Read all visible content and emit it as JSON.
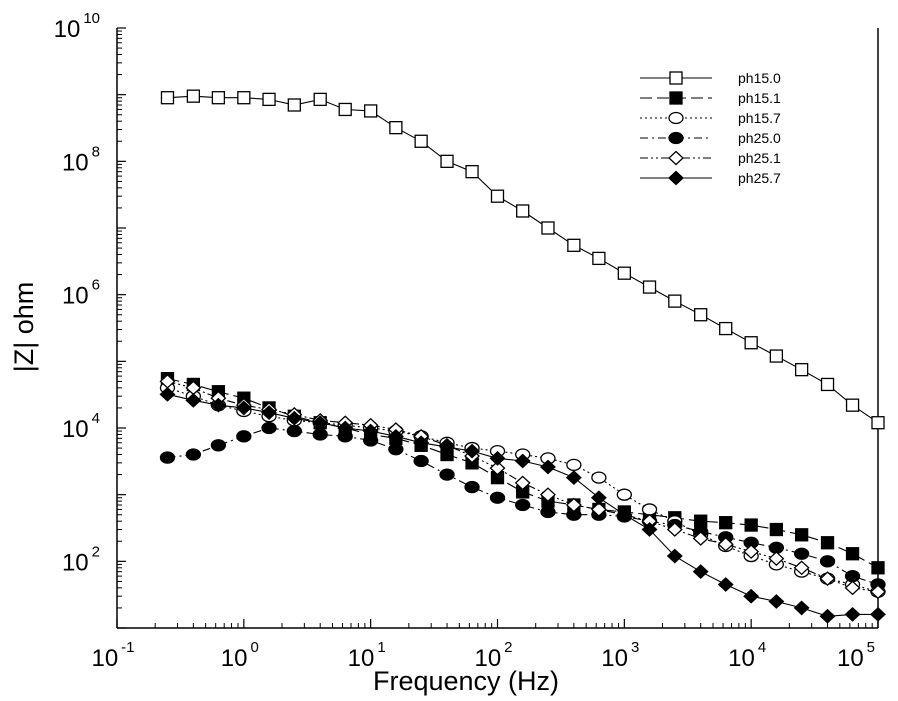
{
  "chart_data": {
    "type": "line",
    "title": "",
    "xlabel": "Frequency (Hz)",
    "ylabel": "|Z| ohm",
    "x_scale": "log",
    "y_scale": "log",
    "xlim": [
      0.1,
      100000
    ],
    "ylim": [
      10,
      10000000000
    ],
    "x_tick_labels": [
      {
        "base": "10",
        "exp": "-1",
        "value": 0.1
      },
      {
        "base": "10",
        "exp": "0",
        "value": 1
      },
      {
        "base": "10",
        "exp": "1",
        "value": 10
      },
      {
        "base": "10",
        "exp": "2",
        "value": 100
      },
      {
        "base": "10",
        "exp": "3",
        "value": 1000
      },
      {
        "base": "10",
        "exp": "4",
        "value": 10000
      },
      {
        "base": "10",
        "exp": "5",
        "value": 100000
      }
    ],
    "y_tick_labels": [
      {
        "base": "10",
        "exp": "2",
        "value": 100
      },
      {
        "base": "10",
        "exp": "4",
        "value": 10000
      },
      {
        "base": "10",
        "exp": "6",
        "value": 1000000
      },
      {
        "base": "10",
        "exp": "8",
        "value": 100000000
      },
      {
        "base": "10",
        "exp": "10",
        "value": 10000000000
      }
    ],
    "legend_position": "top-right",
    "x": [
      0.25,
      0.4,
      0.63,
      1,
      1.58,
      2.5,
      4,
      6.3,
      10,
      15.8,
      25,
      40,
      63,
      100,
      158,
      250,
      400,
      630,
      1000,
      1580,
      2500,
      4000,
      6300,
      10000,
      15800,
      25000,
      40000,
      63000,
      100000
    ],
    "series": [
      {
        "name": "ph15.0",
        "marker": "square-open",
        "dash": "solid",
        "values": [
          900000000,
          950000000,
          900000000,
          900000000,
          850000000,
          700000000,
          850000000,
          600000000,
          570000000,
          320000000,
          200000000,
          100000000,
          70000000,
          30000000,
          18000000,
          10000000,
          5500000,
          3500000,
          2100000,
          1300000,
          800000,
          500000,
          310000,
          190000,
          120000,
          75000,
          45000,
          22000,
          12000
        ]
      },
      {
        "name": "ph15.1",
        "marker": "square-filled",
        "dash": "longdash",
        "values": [
          55000,
          45000,
          35000,
          28000,
          20000,
          15000,
          12000,
          10000,
          8000,
          7000,
          5500,
          4000,
          3000,
          1800,
          1100,
          800,
          700,
          600,
          550,
          500,
          450,
          400,
          380,
          350,
          300,
          250,
          190,
          130,
          80
        ]
      },
      {
        "name": "ph15.7",
        "marker": "circle-open",
        "dash": "dotted",
        "values": [
          40000,
          30000,
          22000,
          18000,
          15000,
          13000,
          12000,
          11000,
          10000,
          9000,
          7500,
          6000,
          5000,
          4500,
          4000,
          3500,
          2800,
          1800,
          1000,
          600,
          400,
          250,
          170,
          120,
          90,
          70,
          55,
          45,
          35
        ]
      },
      {
        "name": "ph25.0",
        "marker": "circle-filled",
        "dash": "dashdot",
        "values": [
          3600,
          4000,
          5500,
          7500,
          10000,
          9000,
          8000,
          7500,
          6500,
          4800,
          3200,
          2000,
          1300,
          900,
          700,
          550,
          500,
          500,
          470,
          400,
          350,
          280,
          230,
          190,
          160,
          130,
          100,
          60,
          45
        ]
      },
      {
        "name": "ph25.1",
        "marker": "diamond-open",
        "dash": "dashdotdot",
        "values": [
          50000,
          40000,
          28000,
          22000,
          19000,
          16000,
          13000,
          12000,
          11000,
          9500,
          7500,
          5500,
          3800,
          2500,
          1500,
          1000,
          700,
          600,
          500,
          400,
          300,
          220,
          180,
          140,
          110,
          80,
          55,
          40,
          35
        ]
      },
      {
        "name": "ph25.7",
        "marker": "diamond-filled",
        "dash": "solid",
        "values": [
          32000,
          26000,
          22000,
          20000,
          17000,
          14000,
          12000,
          10000,
          9000,
          7500,
          6000,
          5200,
          4500,
          3500,
          3200,
          2600,
          1800,
          900,
          500,
          300,
          120,
          70,
          45,
          30,
          25,
          20,
          15,
          16,
          16
        ]
      }
    ]
  }
}
